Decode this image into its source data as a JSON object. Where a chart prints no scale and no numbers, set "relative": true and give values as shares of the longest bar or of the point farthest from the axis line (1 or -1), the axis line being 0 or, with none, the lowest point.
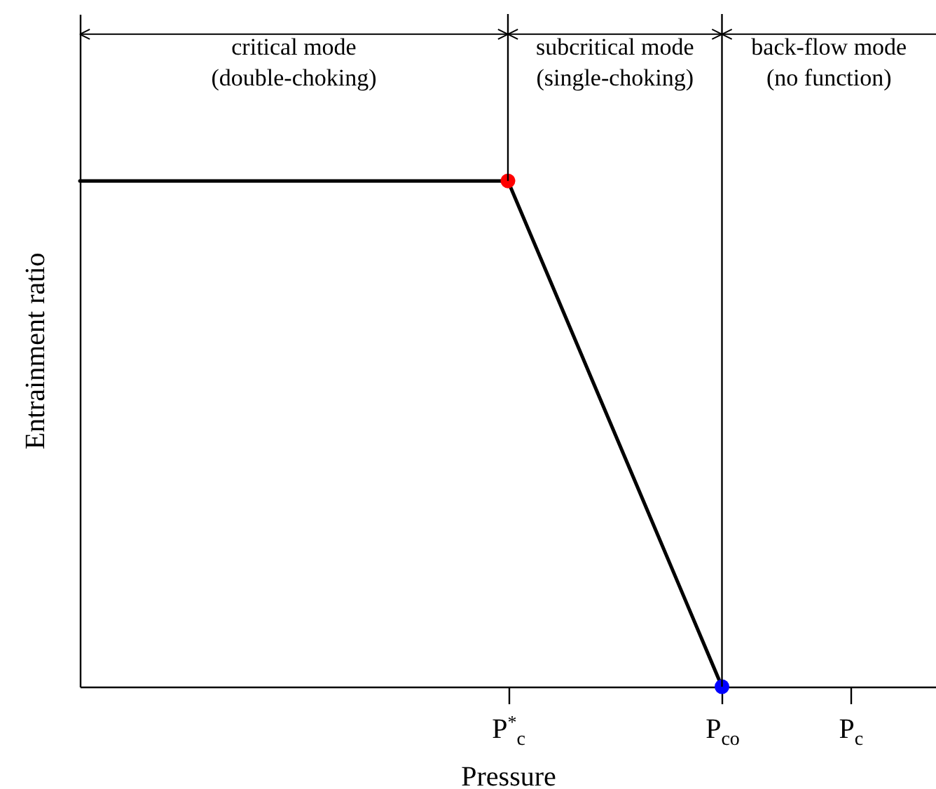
{
  "chart_data": {
    "type": "line",
    "relative": true,
    "xlabel": "Pressure",
    "ylabel": "Entrainment ratio",
    "categories": [
      null,
      null,
      null,
      null,
      null,
      null,
      null,
      null,
      null,
      null,
      "P$^{*}$$_{c}$",
      null,
      null,
      null,
      null,
      "P$_{co}$",
      null,
      null,
      "P$_{c}$",
      null,
      null
    ],
    "grid": false,
    "series": [
      {
        "color": "#000000",
        "values": [
          1,
          1,
          1,
          1,
          1,
          1,
          1,
          1,
          1,
          1,
          1,
          0.8,
          0.6,
          0.4,
          0.2,
          0,
          null,
          null,
          null,
          null,
          null
        ],
        "marker": "none",
        "line_style": "solid"
      },
      {
        "type": "scatter",
        "x": [
          "P$^{*}$$_{c}$",
          "P$_{co}$"
        ],
        "values": [
          1,
          0
        ],
        "colors": [
          "#ff0000",
          "#0000ff"
        ],
        "marker": "circle"
      }
    ],
    "ref_lines": [
      {
        "axis": "x",
        "value": "P$_{co}$",
        "color": "#000000"
      }
    ],
    "annotations": [
      "critical mode\n(double-choking)",
      "subcritical mode\n(single-choking)",
      "back-flow mode\n(no function)"
    ]
  }
}
